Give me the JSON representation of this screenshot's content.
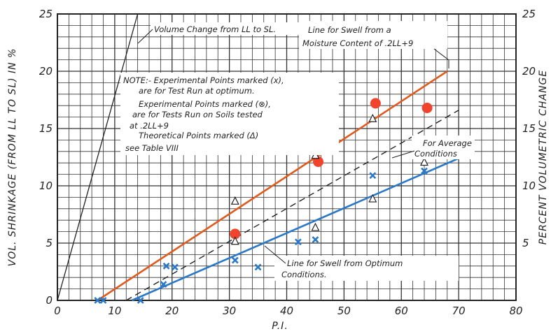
{
  "chart_data": {
    "type": "scatter",
    "xlabel": "P.I.",
    "ylabel": "VOL. SHRINKAGE (FROM LL TO SL) IN %",
    "y2label": "PERCENT VOLUMETRIC CHANGE",
    "xlim": [
      0,
      80
    ],
    "ylim": [
      0,
      25
    ],
    "x_ticks": [
      "0",
      "10",
      "20",
      "30",
      "40",
      "50",
      "60",
      "70",
      "80"
    ],
    "y_ticks": [
      "0",
      "5",
      "10",
      "15",
      "20",
      "25"
    ],
    "y2_ticks": [
      "5",
      "10",
      "15",
      "20",
      "25"
    ],
    "grid": true,
    "annotations": {
      "volume_change": "Volume Change from LL to SL.",
      "swell_moisture_1": "Line for Swell from a",
      "swell_moisture_2": "Moisture Content of .2LL+9",
      "note_1": "NOTE:- Experimental Points marked (x),",
      "note_2": "are for Test Run at optimum.",
      "note_3": "Experimental Points marked (⊗),",
      "note_4": "are for Tests Run on Soils tested",
      "note_5": "at .2LL+9",
      "note_6": "Theoretical Points marked (Δ)",
      "note_7": "see Table VIII",
      "average_1": "For Average",
      "average_2": "Conditions",
      "optimum_1": "Line for Swell from Optimum",
      "optimum_2": "Conditions."
    },
    "lines": [
      {
        "key": "volume_change",
        "color": "#222222",
        "style": "solid",
        "x": [
          0,
          14
        ],
        "y": [
          0,
          25
        ]
      },
      {
        "key": "swell_moisture",
        "color": "#e05a1e",
        "style": "solid",
        "x": [
          7,
          68
        ],
        "y": [
          0,
          20
        ]
      },
      {
        "key": "average",
        "color": "#222222",
        "style": "dashed",
        "x": [
          12,
          70
        ],
        "y": [
          0,
          16.6
        ]
      },
      {
        "key": "optimum",
        "color": "#2a78c8",
        "style": "solid",
        "x": [
          13,
          70
        ],
        "y": [
          0,
          12.4
        ]
      }
    ],
    "series": [
      {
        "marker": "red-circle",
        "color": "#f0442c",
        "x": [
          31,
          45.5,
          55.5,
          64.5
        ],
        "y": [
          5.8,
          12.1,
          17.2,
          16.8
        ]
      },
      {
        "marker": "x",
        "color": "#2a78c8",
        "x": [
          7,
          8,
          14.5,
          18.5,
          19,
          20.5,
          31,
          35,
          42,
          45,
          55,
          64
        ],
        "y": [
          0,
          0,
          0,
          1.4,
          3,
          2.9,
          3.5,
          2.9,
          5.1,
          5.3,
          10.9,
          11.3
        ]
      },
      {
        "marker": "triangle",
        "color": "#222222",
        "x": [
          31,
          31,
          45,
          45,
          55,
          55,
          64
        ],
        "y": [
          5.2,
          8.7,
          6.4,
          12.7,
          8.9,
          15.9,
          12.1
        ]
      }
    ]
  }
}
